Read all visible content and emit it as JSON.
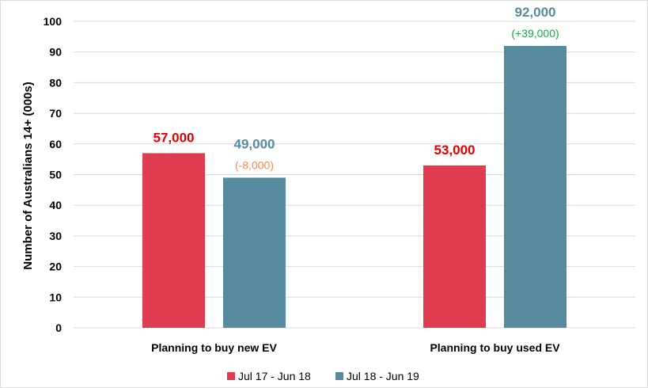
{
  "chart_data": {
    "type": "bar",
    "title": "",
    "xlabel": "",
    "ylabel": "Number of Australians 14+ (000s)",
    "ylim": [
      0,
      100
    ],
    "yticks": [
      0,
      10,
      20,
      30,
      40,
      50,
      60,
      70,
      80,
      90,
      100
    ],
    "grid": true,
    "legend_position": "bottom",
    "categories": [
      "Planning to buy new EV",
      "Planning to buy used EV"
    ],
    "series": [
      {
        "name": "Jul 17 - Jun 18",
        "color": "#e03c50",
        "values": [
          57,
          53
        ],
        "labels": [
          "57,000",
          "53,000"
        ],
        "label_color": "#e00000",
        "changes": [
          "",
          ""
        ]
      },
      {
        "name": "Jul 18 - Jun 19",
        "color": "#568a9f",
        "values": [
          49,
          92
        ],
        "labels": [
          "49,000",
          "92,000"
        ],
        "label_color": "#568a9f",
        "changes": [
          "(-8,000)",
          "(+39,000)"
        ],
        "change_colors": [
          "#f08a5a",
          "#1aa84a"
        ]
      }
    ]
  }
}
